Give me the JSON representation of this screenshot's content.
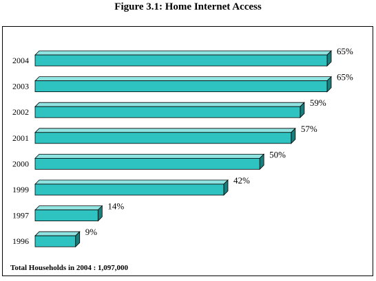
{
  "title": "Figure 3.1: Home Internet Access",
  "footnote": "Total Households in 2004 : 1,097,000",
  "colors": {
    "bar_front": "#2ec3c0",
    "bar_top": "#8fe3e0",
    "bar_side": "#17807e",
    "bar_outline": "#000000"
  },
  "chart_data": {
    "type": "bar",
    "orientation": "horizontal",
    "style": "3d",
    "categories": [
      "2004",
      "2003",
      "2002",
      "2001",
      "2000",
      "1999",
      "1997",
      "1996"
    ],
    "values": [
      65,
      65,
      59,
      57,
      50,
      42,
      14,
      9
    ],
    "data_labels": [
      "65%",
      "65%",
      "59%",
      "57%",
      "50%",
      "42%",
      "14%",
      "9%"
    ],
    "xlim": [
      0,
      65
    ],
    "grid": false,
    "legend": "none"
  }
}
